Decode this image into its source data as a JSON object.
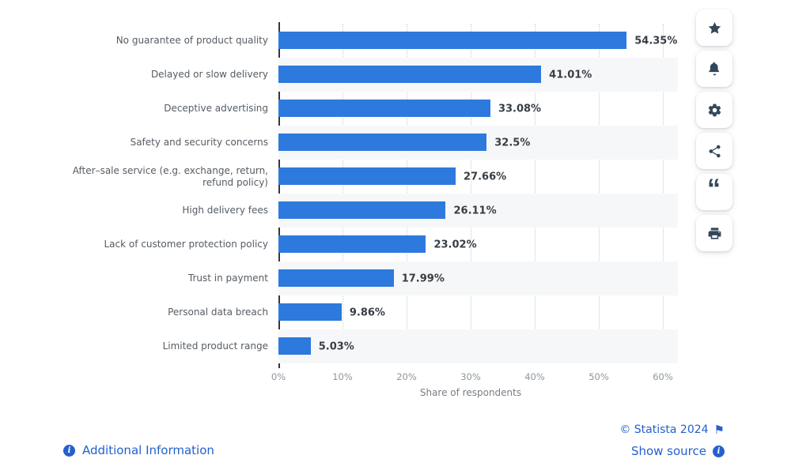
{
  "chart_data": {
    "type": "bar",
    "orientation": "horizontal",
    "title": "",
    "xlabel": "Share of respondents",
    "ylabel": "",
    "xlim": [
      0,
      60
    ],
    "x_ticks": [
      "0%",
      "10%",
      "20%",
      "30%",
      "40%",
      "50%",
      "60%"
    ],
    "grid": "dotted-vertical",
    "legend": "none",
    "bar_color": "#2d79dd",
    "categories": [
      "No guarantee of product quality",
      "Delayed or slow delivery",
      "Deceptive advertising",
      "Safety and security concerns",
      "After–sale service (e.g. exchange, return, refund policy)",
      "High delivery fees",
      "Lack of customer protection policy",
      "Trust in payment",
      "Personal data breach",
      "Limited product range"
    ],
    "values": [
      54.35,
      41.01,
      33.08,
      32.5,
      27.66,
      26.11,
      23.02,
      17.99,
      9.86,
      5.03
    ],
    "value_labels": [
      "54.35%",
      "41.01%",
      "33.08%",
      "32.5%",
      "27.66%",
      "26.11%",
      "23.02%",
      "17.99%",
      "9.86%",
      "5.03%"
    ]
  },
  "toolbar": {
    "icon_color": "#33475b",
    "buttons": [
      {
        "name": "favorite",
        "icon": "star-icon"
      },
      {
        "name": "notification",
        "icon": "bell-icon"
      },
      {
        "name": "settings",
        "icon": "gear-icon"
      },
      {
        "name": "share",
        "icon": "share-icon"
      },
      {
        "name": "cite",
        "icon": "quote-icon"
      },
      {
        "name": "print",
        "icon": "printer-icon"
      }
    ]
  },
  "footer": {
    "additional_info_label": "Additional Information",
    "copyright": "© Statista 2024",
    "show_source_label": "Show source",
    "link_color": "#2460cd"
  }
}
